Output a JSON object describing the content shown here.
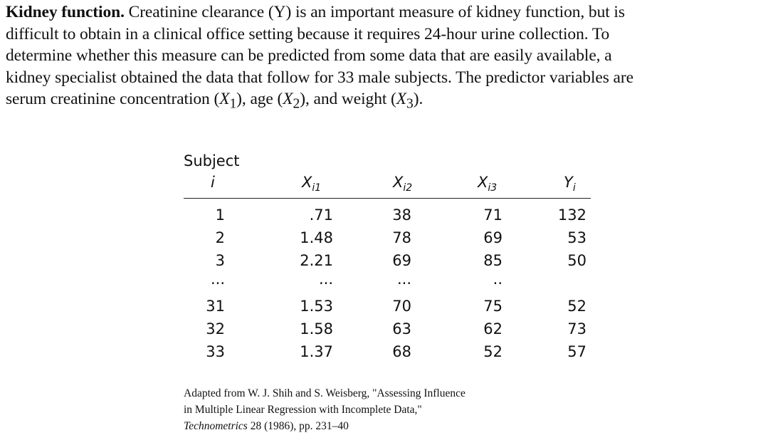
{
  "paragraph": {
    "title": "Kidney function.",
    "line1": " Creatinine clearance (Y) is an important measure of kidney function, but is",
    "line2": "difficult to obtain in a clinical office setting because it requires 24-hour urine collection. To",
    "line3": "determine whether this measure can be predicted from some data that are easily available, a",
    "line4": "kidney specialist obtained the data that follow for 33 male subjects. The predictor variables are",
    "line5_a": "serum creatinine concentration (",
    "line5_x1": "X",
    "line5_x1_sub": "1",
    "line5_b": "), age (",
    "line5_x2": "X",
    "line5_x2_sub": "2",
    "line5_c": "), and weight (",
    "line5_x3": "X",
    "line5_x3_sub": "3",
    "line5_d": ")."
  },
  "table": {
    "subject_header": "Subject",
    "columns": [
      {
        "main": "i",
        "sub": ""
      },
      {
        "main": "X",
        "sub": "i1"
      },
      {
        "main": "X",
        "sub": "i2"
      },
      {
        "main": "X",
        "sub": "i3"
      },
      {
        "main": "Y",
        "sub": "i"
      }
    ],
    "rows": [
      [
        "1",
        ".71",
        "38",
        "71",
        "132"
      ],
      [
        "2",
        "1.48",
        "78",
        "69",
        "53"
      ],
      [
        "3",
        "2.21",
        "69",
        "85",
        "50"
      ],
      [
        "...",
        "...",
        "...",
        "..",
        ""
      ],
      [
        "31",
        "1.53",
        "70",
        "75",
        "52"
      ],
      [
        "32",
        "1.58",
        "63",
        "62",
        "73"
      ],
      [
        "33",
        "1.37",
        "68",
        "52",
        "57"
      ]
    ]
  },
  "source": {
    "line1": "Adapted from W. J. Shih and S. Weisberg, \"Assessing Influence",
    "line2": "in Multiple Linear Regression with Incomplete Data,\"",
    "journal": "Technometrics",
    "line3_rest": " 28 (1986), pp. 231–40"
  }
}
